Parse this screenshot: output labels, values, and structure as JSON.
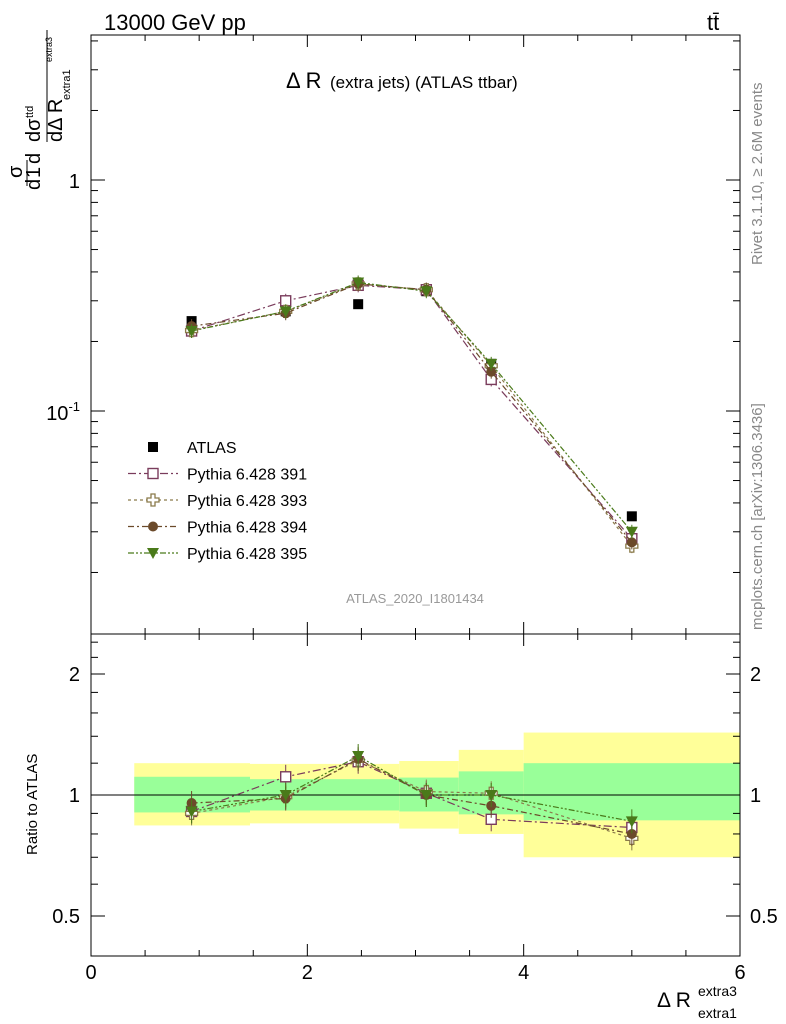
{
  "header": {
    "left": "13000 GeV pp",
    "right": "tt̄"
  },
  "side_labels": {
    "rivet": "Rivet 3.1.10, ≥ 2.6M events",
    "mcplots": "mcplots.cern.ch [arXiv:1306.3436]"
  },
  "chart_data": [
    {
      "type": "scatter",
      "panel": "main",
      "title_main": "Δ R",
      "title_sub": "(extra jets) (ATLAS ttbar)",
      "watermark": "ATLAS_2020_I1801434",
      "ylabel": "1/σ dσ^ttd / dΔ R_extra1^extra3",
      "y_scale": "log",
      "xlim": [
        0,
        6
      ],
      "ylim": [
        0.014,
        4.2
      ],
      "y_tick_labels": [
        {
          "value": 1,
          "label": "1"
        },
        {
          "value": 0.1,
          "label": "10^-1"
        }
      ],
      "legend_position": "middle-left",
      "series": [
        {
          "name": "ATLAS",
          "style": "square-filled",
          "color": "#000000",
          "x": [
            0.93,
            1.8,
            2.47,
            3.1,
            3.7,
            5.0
          ],
          "y": [
            0.245,
            0.27,
            0.29,
            0.33,
            0.16,
            0.035
          ]
        },
        {
          "name": "Pythia 6.428 391",
          "style": "square-open",
          "color": "#7a3c5c",
          "x": [
            0.93,
            1.8,
            2.47,
            3.1,
            3.7,
            5.0
          ],
          "y": [
            0.222,
            0.3,
            0.35,
            0.335,
            0.137,
            0.028
          ]
        },
        {
          "name": "Pythia 6.428 393",
          "style": "cross-open",
          "color": "#8a7a4a",
          "x": [
            0.93,
            1.8,
            2.47,
            3.1,
            3.7,
            5.0
          ],
          "y": [
            0.223,
            0.27,
            0.355,
            0.335,
            0.157,
            0.026
          ]
        },
        {
          "name": "Pythia 6.428 394",
          "style": "circle-filled",
          "color": "#6b4a2a",
          "x": [
            0.93,
            1.8,
            2.47,
            3.1,
            3.7,
            5.0
          ],
          "y": [
            0.233,
            0.265,
            0.355,
            0.335,
            0.148,
            0.027
          ]
        },
        {
          "name": "Pythia 6.428 395",
          "style": "triangle-filled",
          "color": "#4a7a1a",
          "x": [
            0.93,
            1.8,
            2.47,
            3.1,
            3.7,
            5.0
          ],
          "y": [
            0.222,
            0.27,
            0.36,
            0.33,
            0.16,
            0.03
          ]
        }
      ]
    },
    {
      "type": "scatter",
      "panel": "ratio",
      "ylabel": "Ratio to ATLAS",
      "xlabel": "Δ R_extra1^extra3",
      "y_scale": "log",
      "xlim": [
        0,
        6
      ],
      "ylim": [
        0.4,
        2.5
      ],
      "x_tick_labels": [
        "0",
        "2",
        "4",
        "6"
      ],
      "y_tick_labels": [
        "0.5",
        "1",
        "2"
      ],
      "bands": {
        "bin_edges": [
          0.4,
          1.47,
          2.85,
          3.4,
          4.0,
          6.0
        ],
        "inner": [
          [
            0.905,
            1.11
          ],
          [
            0.915,
            1.095
          ],
          [
            0.91,
            1.105
          ],
          [
            0.895,
            1.145
          ],
          [
            0.865,
            1.2
          ]
        ],
        "outer": [
          [
            0.84,
            1.2
          ],
          [
            0.85,
            1.195
          ],
          [
            0.825,
            1.215
          ],
          [
            0.8,
            1.295
          ],
          [
            0.7,
            1.43
          ]
        ],
        "inner_color": "#99ff99",
        "outer_color": "#ffff99"
      },
      "series": [
        {
          "name": "Pythia 6.428 391",
          "x": [
            0.93,
            1.8,
            2.47,
            3.1,
            3.7,
            5.0
          ],
          "y": [
            0.91,
            1.11,
            1.21,
            1.01,
            0.87,
            0.83
          ]
        },
        {
          "name": "Pythia 6.428 393",
          "x": [
            0.93,
            1.8,
            2.47,
            3.1,
            3.7,
            5.0
          ],
          "y": [
            0.9,
            0.99,
            1.22,
            1.02,
            1.01,
            0.78
          ]
        },
        {
          "name": "Pythia 6.428 394",
          "x": [
            0.93,
            1.8,
            2.47,
            3.1,
            3.7,
            5.0
          ],
          "y": [
            0.955,
            0.98,
            1.23,
            1.0,
            0.94,
            0.8
          ]
        },
        {
          "name": "Pythia 6.428 395",
          "x": [
            0.93,
            1.8,
            2.47,
            3.1,
            3.7,
            5.0
          ],
          "y": [
            0.91,
            1.0,
            1.25,
            1.0,
            1.0,
            0.86
          ]
        }
      ]
    }
  ]
}
